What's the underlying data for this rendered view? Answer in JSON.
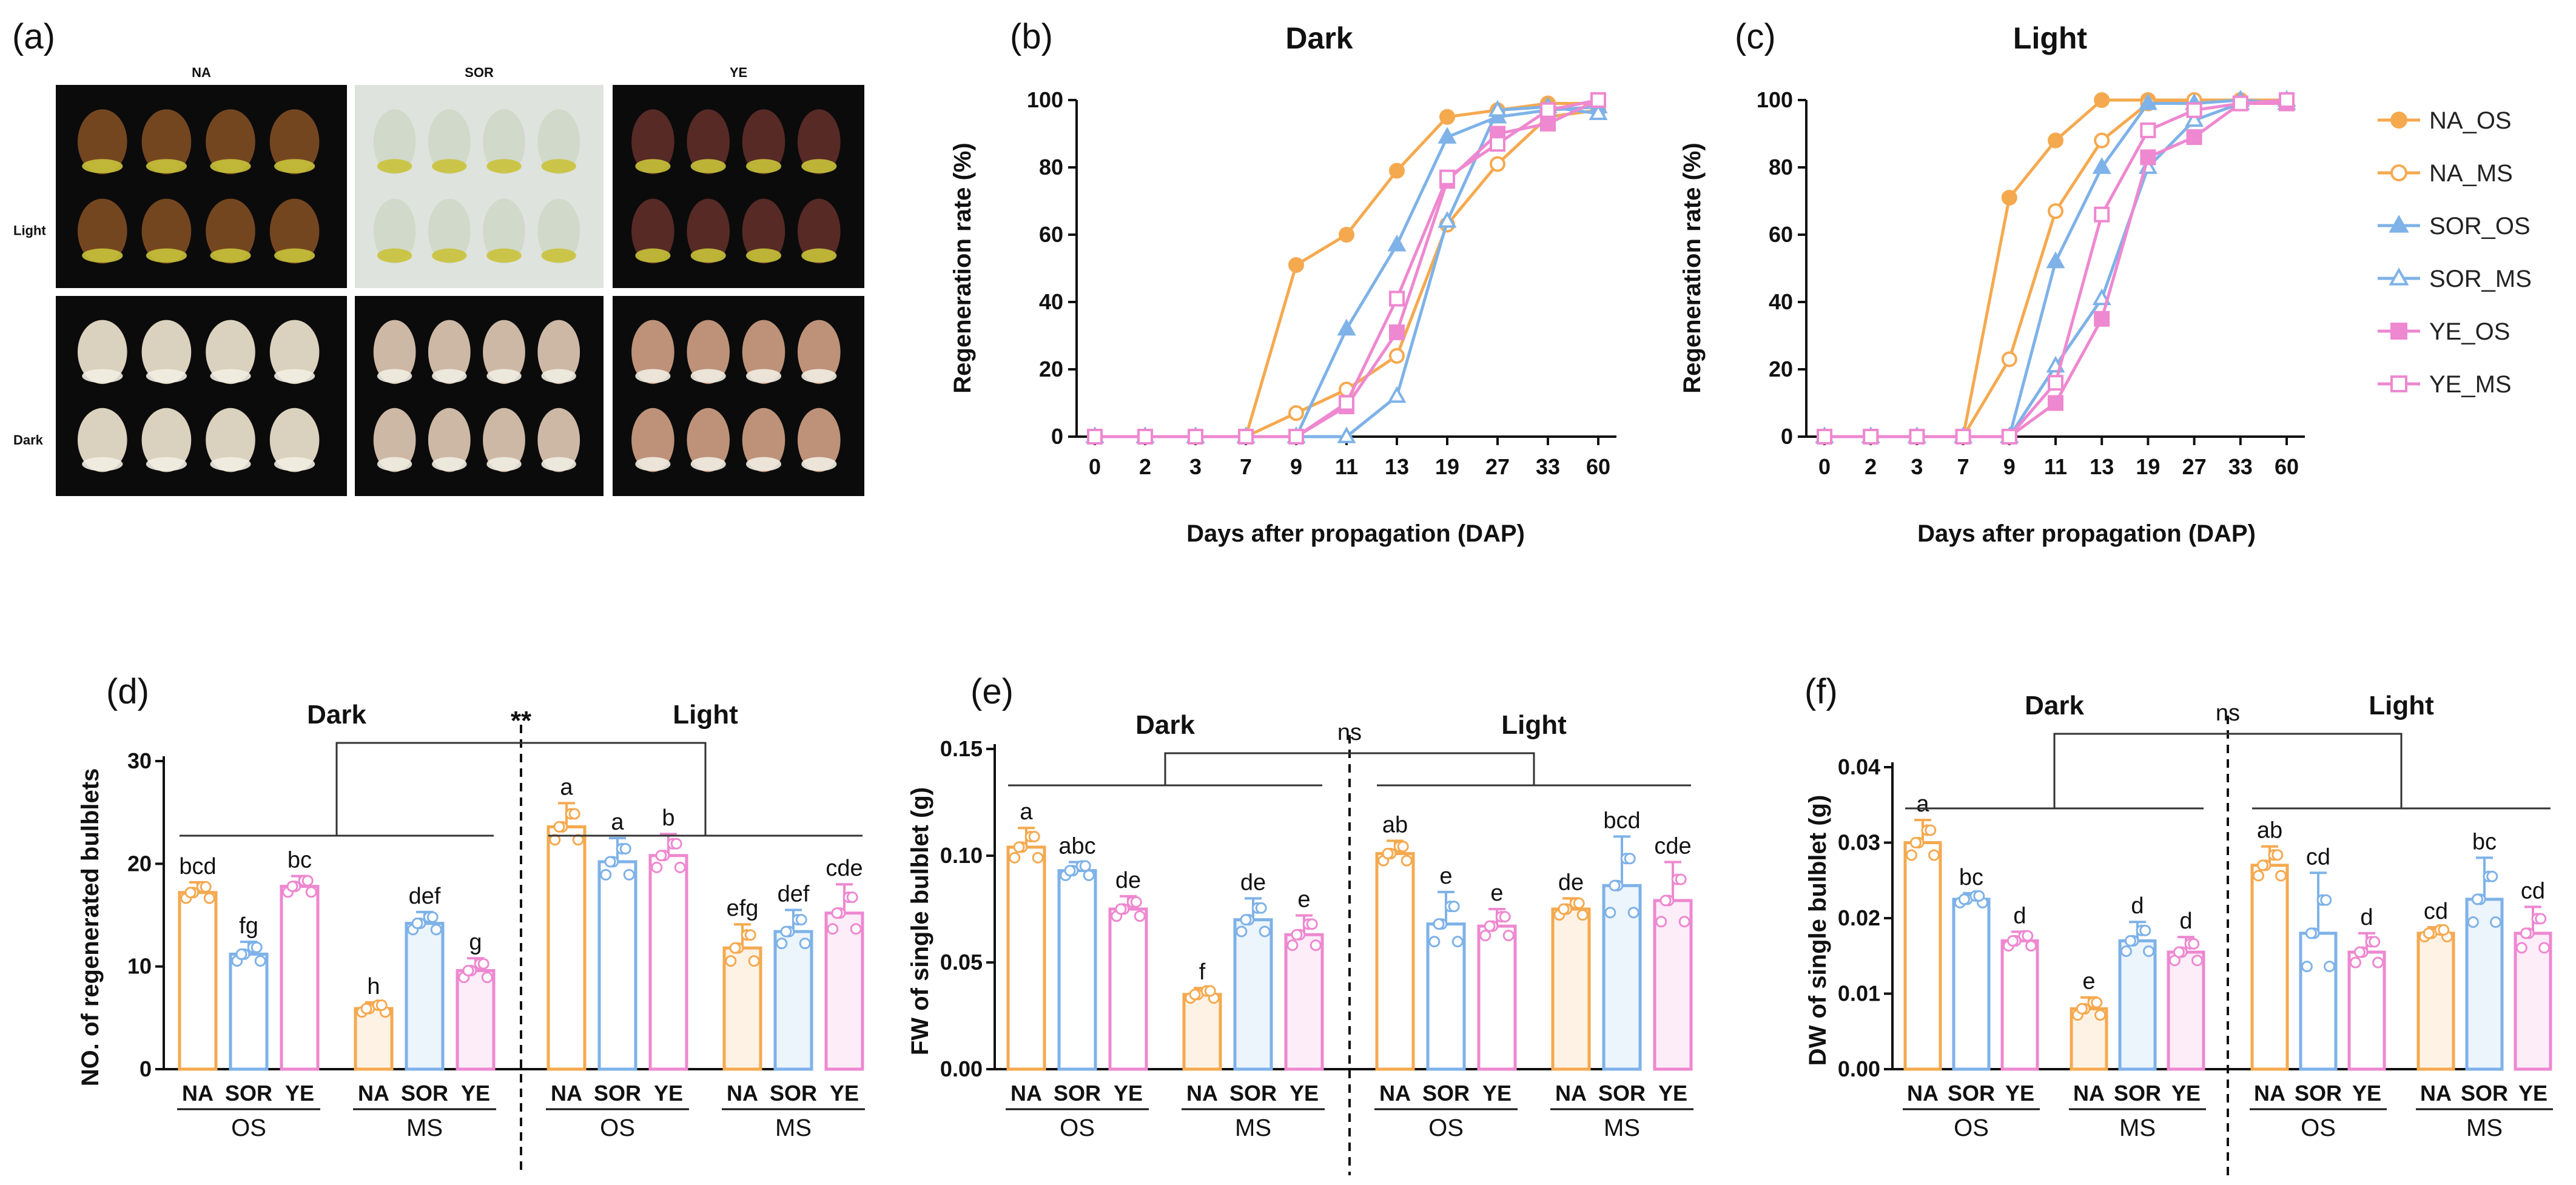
{
  "colors": {
    "NA": "#F5A94F",
    "SOR": "#7EB2E8",
    "YE": "#EE88D0"
  },
  "panels": {
    "a": "(a)",
    "b": "(b)",
    "c": "(c)",
    "d": "(d)",
    "e": "(e)",
    "f": "(f)"
  },
  "photos": {
    "cols": [
      "NA",
      "SOR",
      "YE"
    ],
    "rows": [
      "Light",
      "Dark"
    ],
    "tones": {
      "Light": [
        "#7a4a22",
        "#cfd8c8",
        "#5c2c28"
      ],
      "Dark": [
        "#e6ddc8",
        "#d8c2ae",
        "#c89a80"
      ]
    }
  },
  "legend": [
    "NA_OS",
    "NA_MS",
    "SOR_OS",
    "SOR_MS",
    "YE_OS",
    "YE_MS"
  ],
  "chart_data": [
    {
      "id": "b",
      "type": "line",
      "title": "Dark",
      "xlabel": "Days after propagation (DAP)",
      "ylabel": "Regeneration rate (%)",
      "categories": [
        "0",
        "2",
        "3",
        "7",
        "9",
        "11",
        "13",
        "19",
        "27",
        "33",
        "60"
      ],
      "ylim": [
        0,
        100
      ],
      "yticks": [
        0,
        20,
        40,
        60,
        80,
        100
      ],
      "series": [
        {
          "name": "NA_OS",
          "values": [
            0,
            0,
            0,
            0,
            51,
            60,
            79,
            95,
            97,
            99,
            99
          ]
        },
        {
          "name": "NA_MS",
          "values": [
            0,
            0,
            0,
            0,
            7,
            14,
            24,
            63,
            81,
            95,
            97
          ]
        },
        {
          "name": "SOR_OS",
          "values": [
            0,
            0,
            0,
            0,
            0,
            32,
            57,
            89,
            95,
            97,
            98
          ]
        },
        {
          "name": "SOR_MS",
          "values": [
            0,
            0,
            0,
            0,
            0,
            0,
            12,
            64,
            97,
            98,
            96
          ]
        },
        {
          "name": "YE_OS",
          "values": [
            0,
            0,
            0,
            0,
            0,
            9,
            31,
            76,
            90,
            93,
            100
          ]
        },
        {
          "name": "YE_MS",
          "values": [
            0,
            0,
            0,
            0,
            0,
            10,
            41,
            77,
            87,
            97,
            100
          ]
        }
      ]
    },
    {
      "id": "c",
      "type": "line",
      "title": "Light",
      "xlabel": "Days after propagation (DAP)",
      "ylabel": "Regeneration rate (%)",
      "categories": [
        "0",
        "2",
        "3",
        "7",
        "9",
        "11",
        "13",
        "19",
        "27",
        "33",
        "60"
      ],
      "ylim": [
        0,
        100
      ],
      "yticks": [
        0,
        20,
        40,
        60,
        80,
        100
      ],
      "series": [
        {
          "name": "NA_OS",
          "values": [
            0,
            0,
            0,
            0,
            71,
            88,
            100,
            100,
            100,
            100,
            100
          ]
        },
        {
          "name": "NA_MS",
          "values": [
            0,
            0,
            0,
            0,
            23,
            67,
            88,
            99,
            100,
            100,
            100
          ]
        },
        {
          "name": "SOR_OS",
          "values": [
            0,
            0,
            0,
            0,
            0,
            52,
            80,
            99,
            99,
            100,
            99
          ]
        },
        {
          "name": "SOR_MS",
          "values": [
            0,
            0,
            0,
            0,
            0,
            21,
            41,
            80,
            94,
            99,
            100
          ]
        },
        {
          "name": "YE_OS",
          "values": [
            0,
            0,
            0,
            0,
            0,
            10,
            35,
            83,
            89,
            99,
            99
          ]
        },
        {
          "name": "YE_MS",
          "values": [
            0,
            0,
            0,
            0,
            0,
            16,
            66,
            91,
            97,
            99,
            100
          ]
        }
      ]
    },
    {
      "id": "d",
      "type": "bar",
      "ylabel": "NO. of regenerated bulblets",
      "ylim": [
        0,
        30
      ],
      "yticks": [
        0,
        10,
        20,
        30
      ],
      "tickfmt": "0",
      "categories": [
        "NA",
        "SOR",
        "YE",
        "NA",
        "SOR",
        "YE",
        "NA",
        "SOR",
        "YE",
        "NA",
        "SOR",
        "YE"
      ],
      "groups": [
        "OS",
        "MS",
        "OS",
        "MS"
      ],
      "conditions": [
        "Dark",
        "Light"
      ],
      "comparison": "**",
      "values": [
        17.2,
        11.2,
        17.8,
        5.9,
        14.2,
        9.6,
        23.6,
        20.2,
        20.8,
        11.8,
        13.4,
        15.2
      ],
      "errors": [
        1.0,
        1.2,
        1.0,
        0.6,
        1.1,
        1.2,
        2.3,
        2.3,
        2.1,
        2.3,
        2.1,
        2.8
      ],
      "letters": [
        "bcd",
        "fg",
        "bc",
        "h",
        "def",
        "g",
        "a",
        "a",
        "b",
        "efg",
        "def",
        "cde"
      ]
    },
    {
      "id": "e",
      "type": "bar",
      "ylabel": "FW of single bulblet (g)",
      "ylim": [
        0,
        0.15
      ],
      "yticks": [
        0,
        0.05,
        0.1,
        0.15
      ],
      "tickfmt": "0.00",
      "categories": [
        "NA",
        "SOR",
        "YE",
        "NA",
        "SOR",
        "YE",
        "NA",
        "SOR",
        "YE",
        "NA",
        "SOR",
        "YE"
      ],
      "groups": [
        "OS",
        "MS",
        "OS",
        "MS"
      ],
      "conditions": [
        "Dark",
        "Light"
      ],
      "comparison": "ns",
      "values": [
        0.104,
        0.093,
        0.075,
        0.035,
        0.07,
        0.063,
        0.101,
        0.068,
        0.067,
        0.075,
        0.086,
        0.079
      ],
      "errors": [
        0.009,
        0.004,
        0.006,
        0.003,
        0.01,
        0.009,
        0.006,
        0.015,
        0.008,
        0.005,
        0.023,
        0.018
      ],
      "letters": [
        "a",
        "abc",
        "de",
        "f",
        "de",
        "e",
        "ab",
        "e",
        "e",
        "de",
        "bcd",
        "cde"
      ]
    },
    {
      "id": "f",
      "type": "bar",
      "ylabel": "DW of single bulblet (g)",
      "ylim": [
        0,
        0.04
      ],
      "yticks": [
        0,
        0.01,
        0.02,
        0.03,
        0.04
      ],
      "tickfmt": "0.00",
      "categories": [
        "NA",
        "SOR",
        "YE",
        "NA",
        "SOR",
        "YE",
        "NA",
        "SOR",
        "YE",
        "NA",
        "SOR",
        "YE"
      ],
      "groups": [
        "OS",
        "MS",
        "OS",
        "MS"
      ],
      "conditions": [
        "Dark",
        "Light"
      ],
      "comparison": "ns",
      "values": [
        0.03,
        0.0225,
        0.017,
        0.008,
        0.017,
        0.0155,
        0.027,
        0.018,
        0.0155,
        0.018,
        0.0225,
        0.018
      ],
      "errors": [
        0.003,
        0.0008,
        0.0012,
        0.0015,
        0.0025,
        0.002,
        0.0025,
        0.008,
        0.0025,
        0.0008,
        0.0055,
        0.0035
      ],
      "letters": [
        "a",
        "bc",
        "d",
        "e",
        "d",
        "d",
        "ab",
        "cd",
        "d",
        "cd",
        "bc",
        "cd"
      ]
    }
  ]
}
